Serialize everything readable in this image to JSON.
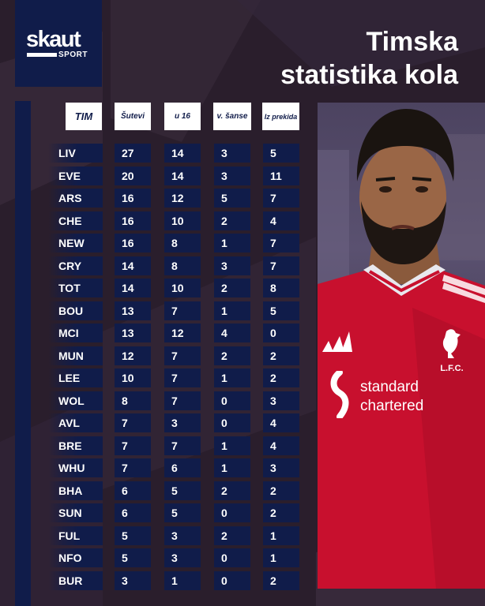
{
  "brand": {
    "name": "skaut",
    "sub": "SPORT"
  },
  "title": {
    "line1": "Timska",
    "line2": "statistika kola"
  },
  "columns": [
    "TIM",
    "Šutevi",
    "u 16",
    "v. šanse",
    "Iz prekida"
  ],
  "rows": [
    {
      "team": "LIV",
      "sutevi": "27",
      "u16": "14",
      "sanse": "3",
      "prekida": "5"
    },
    {
      "team": "EVE",
      "sutevi": "20",
      "u16": "14",
      "sanse": "3",
      "prekida": "11"
    },
    {
      "team": "ARS",
      "sutevi": "16",
      "u16": "12",
      "sanse": "5",
      "prekida": "7"
    },
    {
      "team": "CHE",
      "sutevi": "16",
      "u16": "10",
      "sanse": "2",
      "prekida": "4"
    },
    {
      "team": "NEW",
      "sutevi": "16",
      "u16": "8",
      "sanse": "1",
      "prekida": "7"
    },
    {
      "team": "CRY",
      "sutevi": "14",
      "u16": "8",
      "sanse": "3",
      "prekida": "7"
    },
    {
      "team": "TOT",
      "sutevi": "14",
      "u16": "10",
      "sanse": "2",
      "prekida": "8"
    },
    {
      "team": "BOU",
      "sutevi": "13",
      "u16": "7",
      "sanse": "1",
      "prekida": "5"
    },
    {
      "team": "MCI",
      "sutevi": "13",
      "u16": "12",
      "sanse": "4",
      "prekida": "0"
    },
    {
      "team": "MUN",
      "sutevi": "12",
      "u16": "7",
      "sanse": "2",
      "prekida": "2"
    },
    {
      "team": "LEE",
      "sutevi": "10",
      "u16": "7",
      "sanse": "1",
      "prekida": "2"
    },
    {
      "team": "WOL",
      "sutevi": "8",
      "u16": "7",
      "sanse": "0",
      "prekida": "3"
    },
    {
      "team": "AVL",
      "sutevi": "7",
      "u16": "3",
      "sanse": "0",
      "prekida": "4"
    },
    {
      "team": "BRE",
      "sutevi": "7",
      "u16": "7",
      "sanse": "1",
      "prekida": "4"
    },
    {
      "team": "WHU",
      "sutevi": "7",
      "u16": "6",
      "sanse": "1",
      "prekida": "3"
    },
    {
      "team": "BHA",
      "sutevi": "6",
      "u16": "5",
      "sanse": "2",
      "prekida": "2"
    },
    {
      "team": "SUN",
      "sutevi": "6",
      "u16": "5",
      "sanse": "0",
      "prekida": "2"
    },
    {
      "team": "FUL",
      "sutevi": "5",
      "u16": "3",
      "sanse": "2",
      "prekida": "1"
    },
    {
      "team": "NFO",
      "sutevi": "5",
      "u16": "3",
      "sanse": "0",
      "prekida": "1"
    },
    {
      "team": "BUR",
      "sutevi": "3",
      "u16": "1",
      "sanse": "0",
      "prekida": "2"
    }
  ],
  "photo": {
    "badge_text": "L.F.C.",
    "sponsor_line1": "standard",
    "sponsor_line2": "chartered",
    "icons": [
      "adidas-stripes-icon",
      "liverbird-crest-icon",
      "sponsor-logo-icon"
    ]
  },
  "colors": {
    "background": "#2a1e2c",
    "navy": "#101c4a",
    "kit_red": "#c8102e",
    "white": "#ffffff"
  }
}
